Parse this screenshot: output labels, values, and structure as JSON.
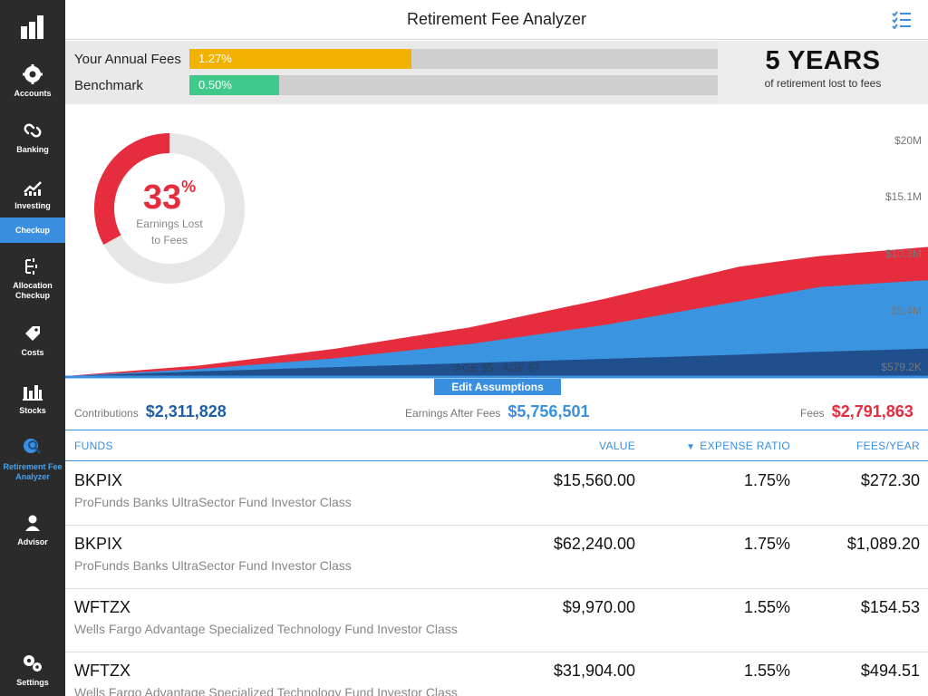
{
  "app": {
    "title": "Retirement Fee Analyzer"
  },
  "sidebar": {
    "items": [
      {
        "label": "Accounts",
        "icon": "gear-badge-icon"
      },
      {
        "label": "Banking",
        "icon": "link-icon"
      },
      {
        "label": "Investing",
        "icon": "trend-chart-icon"
      },
      {
        "label": "Checkup",
        "icon": ""
      },
      {
        "label": "Allocation Checkup",
        "icon": "allocation-tree-icon"
      },
      {
        "label": "Costs",
        "icon": "price-tag-icon"
      },
      {
        "label": "Stocks",
        "icon": "bar-chart-icon"
      },
      {
        "label": "Retirement Fee Analyzer",
        "icon": "magnifier-icon"
      },
      {
        "label": "Advisor",
        "icon": "person-icon"
      },
      {
        "label": "Settings",
        "icon": "gears-icon"
      }
    ]
  },
  "fees": {
    "your_label": "Your Annual Fees",
    "your_value": "1.27%",
    "your_fill_fraction": 0.42,
    "benchmark_label": "Benchmark",
    "benchmark_value": "0.50%",
    "benchmark_fill_fraction": 0.17,
    "years_big": "5 YEARS",
    "years_sub": "of retirement lost to fees"
  },
  "donut": {
    "percent": "33",
    "percent_sign": "%",
    "percent_fraction": 0.33,
    "caption_line1": "Earnings Lost",
    "caption_line2": "to Fees"
  },
  "chart_data": {
    "type": "area",
    "title": "",
    "xlabel": "AGE 35 - AGE 67",
    "x": [
      35,
      40,
      45,
      50,
      55,
      60,
      63,
      67
    ],
    "y_ticks": [
      "$20M",
      "$15.1M",
      "$10.3M",
      "$5.4M",
      "$579.2K"
    ],
    "ylim": [
      579200,
      20000000
    ],
    "series": [
      {
        "name": "Contributions",
        "color": "#1f4f8c",
        "values": [
          0,
          400000,
          750000,
          1100000,
          1450000,
          1800000,
          2050000,
          2311828
        ]
      },
      {
        "name": "Earnings After Fees",
        "color": "#3a94e0",
        "values": [
          0,
          600000,
          1500000,
          2700000,
          4300000,
          6300000,
          7500000,
          8068329
        ]
      },
      {
        "name": "Fees",
        "color": "#e52d3e",
        "values": [
          0,
          900000,
          2300000,
          4100000,
          6500000,
          9200000,
          10100000,
          10860192
        ]
      }
    ]
  },
  "edit_button": "Edit Assumptions",
  "summary": {
    "contributions_label": "Contributions",
    "contributions_value": "$2,311,828",
    "earnings_label": "Earnings After Fees",
    "earnings_value": "$5,756,501",
    "fees_label": "Fees",
    "fees_value": "$2,791,863"
  },
  "table": {
    "headers": {
      "funds": "FUNDS",
      "value": "VALUE",
      "ratio": "EXPENSE RATIO",
      "fees": "FEES/YEAR"
    },
    "rows": [
      {
        "ticker": "BKPIX",
        "name": "ProFunds Banks UltraSector Fund Investor Class",
        "value": "$15,560.00",
        "ratio": "1.75%",
        "fees": "$272.30"
      },
      {
        "ticker": "BKPIX",
        "name": "ProFunds Banks UltraSector Fund Investor Class",
        "value": "$62,240.00",
        "ratio": "1.75%",
        "fees": "$1,089.20"
      },
      {
        "ticker": "WFTZX",
        "name": "Wells Fargo Advantage Specialized Technology Fund Investor Class",
        "value": "$9,970.00",
        "ratio": "1.55%",
        "fees": "$154.53"
      },
      {
        "ticker": "WFTZX",
        "name": "Wells Fargo Advantage Specialized Technology Fund Investor Class",
        "value": "$31,904.00",
        "ratio": "1.55%",
        "fees": "$494.51"
      }
    ]
  },
  "colors": {
    "accent": "#3a8fe0",
    "fee_bar": "#f2b300",
    "benchmark_bar": "#3fc98b",
    "fees_red": "#e52d3e",
    "contrib_blue": "#1f5fa8"
  }
}
